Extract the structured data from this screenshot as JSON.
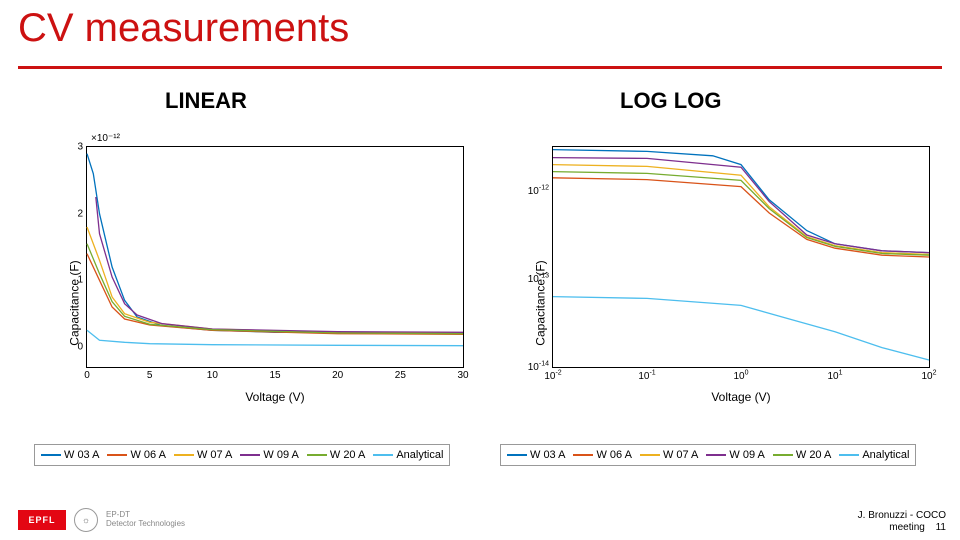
{
  "title": "CV measurements",
  "subtitle_linear": "LINEAR",
  "subtitle_log": "LOG LOG",
  "series_colors": {
    "W03A": "#0072bd",
    "W06A": "#d95319",
    "W07A": "#edb120",
    "W09A": "#7e2f8e",
    "W20A": "#77ac30",
    "Analytical": "#4dbeee"
  },
  "legend_items": [
    {
      "key": "W03A",
      "label": "W 03 A"
    },
    {
      "key": "W06A",
      "label": "W 06 A"
    },
    {
      "key": "W07A",
      "label": "W 07 A"
    },
    {
      "key": "W09A",
      "label": "W 09 A"
    },
    {
      "key": "W20A",
      "label": "W 20 A"
    },
    {
      "key": "Analytical",
      "label": "Analytical"
    }
  ],
  "linear_chart": {
    "type": "line",
    "ylabel": "Capacitance (F)",
    "xlabel": "Voltage (V)",
    "multiplier": "×10⁻¹²",
    "xlim": [
      0,
      30
    ],
    "xticks": [
      0,
      5,
      10,
      15,
      20,
      25,
      30
    ],
    "ylim": [
      -0.3,
      3
    ],
    "yticks": [
      0,
      1,
      2,
      3
    ],
    "plot_bg": "#ffffff",
    "frame_color": "#000000",
    "line_width": 1.3,
    "series": {
      "W03A": [
        [
          0,
          2.9
        ],
        [
          0.5,
          2.6
        ],
        [
          1,
          2.0
        ],
        [
          2,
          1.2
        ],
        [
          3,
          0.7
        ],
        [
          4,
          0.45
        ],
        [
          6,
          0.32
        ],
        [
          10,
          0.25
        ],
        [
          15,
          0.22
        ],
        [
          20,
          0.22
        ],
        [
          30,
          0.21
        ]
      ],
      "W06A": [
        [
          0,
          1.4
        ],
        [
          1,
          1.0
        ],
        [
          2,
          0.6
        ],
        [
          3,
          0.42
        ],
        [
          5,
          0.33
        ],
        [
          10,
          0.25
        ],
        [
          20,
          0.2
        ],
        [
          30,
          0.19
        ]
      ],
      "W07A": [
        [
          0,
          1.8
        ],
        [
          1,
          1.3
        ],
        [
          2,
          0.75
        ],
        [
          3,
          0.5
        ],
        [
          5,
          0.37
        ],
        [
          10,
          0.27
        ],
        [
          20,
          0.22
        ],
        [
          30,
          0.21
        ]
      ],
      "W09A": [
        [
          0.7,
          2.25
        ],
        [
          1,
          1.7
        ],
        [
          2,
          1.05
        ],
        [
          3,
          0.65
        ],
        [
          4,
          0.48
        ],
        [
          6,
          0.35
        ],
        [
          10,
          0.27
        ],
        [
          20,
          0.23
        ],
        [
          30,
          0.22
        ]
      ],
      "W20A": [
        [
          0,
          1.55
        ],
        [
          1,
          1.1
        ],
        [
          2,
          0.68
        ],
        [
          3,
          0.46
        ],
        [
          5,
          0.34
        ],
        [
          10,
          0.26
        ],
        [
          20,
          0.21
        ],
        [
          30,
          0.2
        ]
      ],
      "Analytical": [
        [
          0,
          0.25
        ],
        [
          1,
          0.1
        ],
        [
          3,
          0.07
        ],
        [
          5,
          0.05
        ],
        [
          10,
          0.035
        ],
        [
          20,
          0.025
        ],
        [
          30,
          0.02
        ]
      ]
    }
  },
  "log_chart": {
    "type": "line-loglog",
    "ylabel": "Capacitance (F)",
    "xlabel": "Voltage (V)",
    "xlim_exp": [
      -2,
      2
    ],
    "xticks_exp": [
      -2,
      -1,
      0,
      1,
      2
    ],
    "ylim_exp": [
      -14,
      -11.5
    ],
    "yticks_exp": [
      -14,
      -13,
      -12
    ],
    "plot_bg": "#ffffff",
    "frame_color": "#000000",
    "line_width": 1.3,
    "series": {
      "W03A": [
        [
          -2,
          -11.53
        ],
        [
          -1,
          -11.55
        ],
        [
          -0.3,
          -11.6
        ],
        [
          0,
          -11.7
        ],
        [
          0.3,
          -12.1
        ],
        [
          0.7,
          -12.45
        ],
        [
          1,
          -12.6
        ],
        [
          1.5,
          -12.68
        ],
        [
          2,
          -12.7
        ]
      ],
      "W06A": [
        [
          -2,
          -11.85
        ],
        [
          -1,
          -11.87
        ],
        [
          0,
          -11.95
        ],
        [
          0.3,
          -12.25
        ],
        [
          0.7,
          -12.55
        ],
        [
          1,
          -12.65
        ],
        [
          1.5,
          -12.73
        ],
        [
          2,
          -12.75
        ]
      ],
      "W07A": [
        [
          -2,
          -11.7
        ],
        [
          -1,
          -11.72
        ],
        [
          0,
          -11.82
        ],
        [
          0.3,
          -12.18
        ],
        [
          0.7,
          -12.52
        ],
        [
          1,
          -12.62
        ],
        [
          1.5,
          -12.7
        ],
        [
          2,
          -12.72
        ]
      ],
      "W09A": [
        [
          -2,
          -11.62
        ],
        [
          -1,
          -11.63
        ],
        [
          0,
          -11.73
        ],
        [
          0.3,
          -12.12
        ],
        [
          0.7,
          -12.5
        ],
        [
          1,
          -12.6
        ],
        [
          1.5,
          -12.68
        ],
        [
          2,
          -12.7
        ]
      ],
      "W20A": [
        [
          -2,
          -11.78
        ],
        [
          -1,
          -11.8
        ],
        [
          0,
          -11.88
        ],
        [
          0.3,
          -12.2
        ],
        [
          0.7,
          -12.53
        ],
        [
          1,
          -12.63
        ],
        [
          1.5,
          -12.71
        ],
        [
          2,
          -12.73
        ]
      ],
      "Analytical": [
        [
          -2,
          -13.2
        ],
        [
          -1,
          -13.22
        ],
        [
          0,
          -13.3
        ],
        [
          0.5,
          -13.45
        ],
        [
          1,
          -13.6
        ],
        [
          1.5,
          -13.78
        ],
        [
          2,
          -13.92
        ]
      ]
    }
  },
  "footer": {
    "epfl": "EPFL",
    "circle": "☼",
    "small1": "EP-DT",
    "small2": "Detector Technologies",
    "right1": "J. Bronuzzi -  COCO",
    "right2": "meeting",
    "page": "11"
  }
}
